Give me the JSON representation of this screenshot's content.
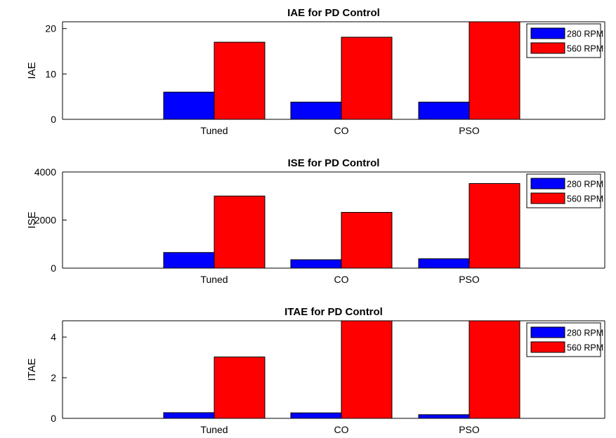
{
  "chart_data": [
    {
      "type": "bar",
      "title": "IAE for PD Control",
      "ylabel": "IAE",
      "xlabel": "",
      "categories": [
        "Tuned",
        "CO",
        "PSO"
      ],
      "ylim": [
        0,
        21.5
      ],
      "yticks": [
        0,
        10,
        20
      ],
      "series": [
        {
          "name": "280 RPM",
          "color": "#0000ff",
          "values": [
            6,
            3.8,
            3.8
          ]
        },
        {
          "name": "560 RPM",
          "color": "#ff0000",
          "values": [
            17,
            18.1,
            21.5
          ]
        }
      ],
      "legend": "top-right",
      "grid": false
    },
    {
      "type": "bar",
      "title": "ISE for PD Control",
      "ylabel": "ISE",
      "xlabel": "",
      "categories": [
        "Tuned",
        "CO",
        "PSO"
      ],
      "ylim": [
        0,
        4000
      ],
      "yticks": [
        0,
        2000,
        4000
      ],
      "series": [
        {
          "name": "280 RPM",
          "color": "#0000ff",
          "values": [
            650,
            350,
            390
          ]
        },
        {
          "name": "560 RPM",
          "color": "#ff0000",
          "values": [
            3000,
            2320,
            3520
          ]
        }
      ],
      "legend": "top-right",
      "grid": false
    },
    {
      "type": "bar",
      "title": "ITAE for PD Control",
      "ylabel": "ITAE",
      "xlabel": "",
      "categories": [
        "Tuned",
        "CO",
        "PSO"
      ],
      "ylim": [
        0,
        4.8
      ],
      "yticks": [
        0,
        2,
        4
      ],
      "series": [
        {
          "name": "280 RPM",
          "color": "#0000ff",
          "values": [
            0.28,
            0.27,
            0.18
          ]
        },
        {
          "name": "560 RPM",
          "color": "#ff0000",
          "values": [
            3.02,
            4.8,
            4.8
          ]
        }
      ],
      "legend": "top-right",
      "grid": false
    }
  ]
}
